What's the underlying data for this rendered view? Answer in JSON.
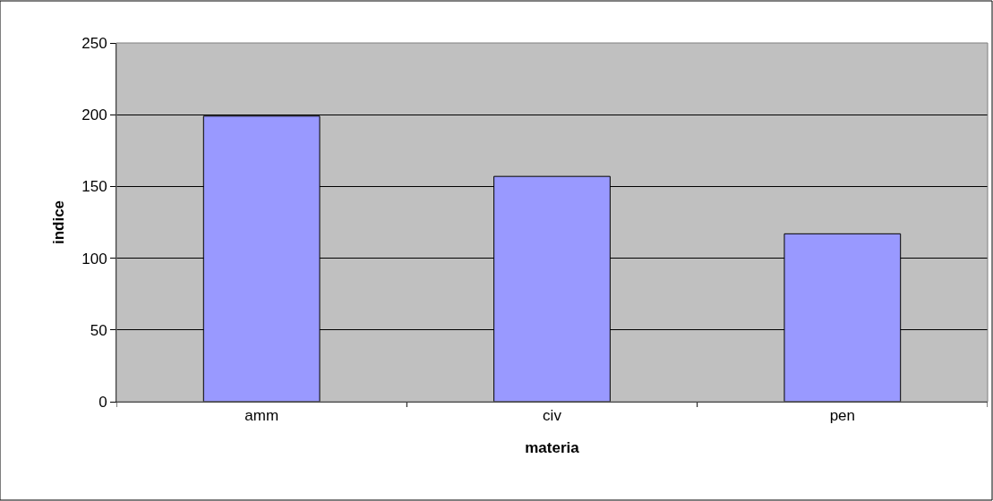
{
  "chart_data": {
    "type": "bar",
    "xlabel": "materia",
    "ylabel": "indice",
    "categories": [
      "amm",
      "civ",
      "pen"
    ],
    "series": [
      {
        "color": "#9999ff",
        "values": [
          199,
          157,
          117
        ]
      }
    ],
    "ylim": [
      0,
      250
    ],
    "yticks": [
      0,
      50,
      100,
      150,
      200,
      250
    ],
    "grid": "y",
    "legend": false
  }
}
